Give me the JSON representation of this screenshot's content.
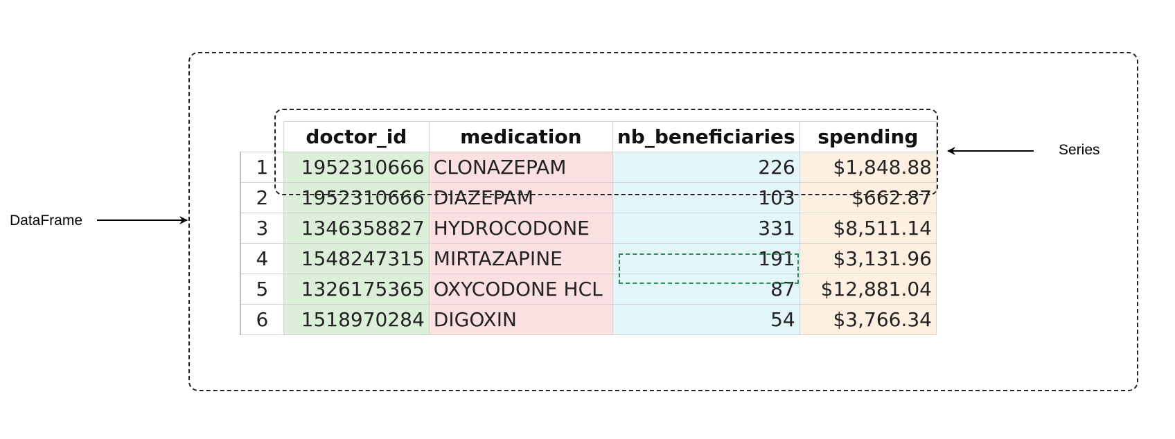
{
  "labels": {
    "dataframe": "DataFrame",
    "series": "Series"
  },
  "table": {
    "columns": [
      "doctor_id",
      "medication",
      "nb_beneficiaries",
      "spending"
    ],
    "rows": [
      {
        "index": "1",
        "doctor_id": "1952310666",
        "medication": "CLONAZEPAM",
        "nb_beneficiaries": "226",
        "spending": "$1,848.88"
      },
      {
        "index": "2",
        "doctor_id": "1952310666",
        "medication": "DIAZEPAM",
        "nb_beneficiaries": "103",
        "spending": "$662.87"
      },
      {
        "index": "3",
        "doctor_id": "1346358827",
        "medication": "HYDROCODONE",
        "nb_beneficiaries": "331",
        "spending": "$8,511.14"
      },
      {
        "index": "4",
        "doctor_id": "1548247315",
        "medication": "MIRTAZAPINE",
        "nb_beneficiaries": "191",
        "spending": "$3,131.96"
      },
      {
        "index": "5",
        "doctor_id": "1326175365",
        "medication": "OXYCODONE HCL",
        "nb_beneficiaries": "87",
        "spending": "$12,881.04"
      },
      {
        "index": "6",
        "doctor_id": "1518970284",
        "medication": "DIGOXIN",
        "nb_beneficiaries": "54",
        "spending": "$3,766.34"
      }
    ]
  },
  "colors": {
    "doctor_id": "#dcefd9",
    "medication": "#fae0e1",
    "nb_beneficiaries": "#e2f5f9",
    "spending": "#fdf0e1",
    "highlight": "#2e8b57"
  }
}
